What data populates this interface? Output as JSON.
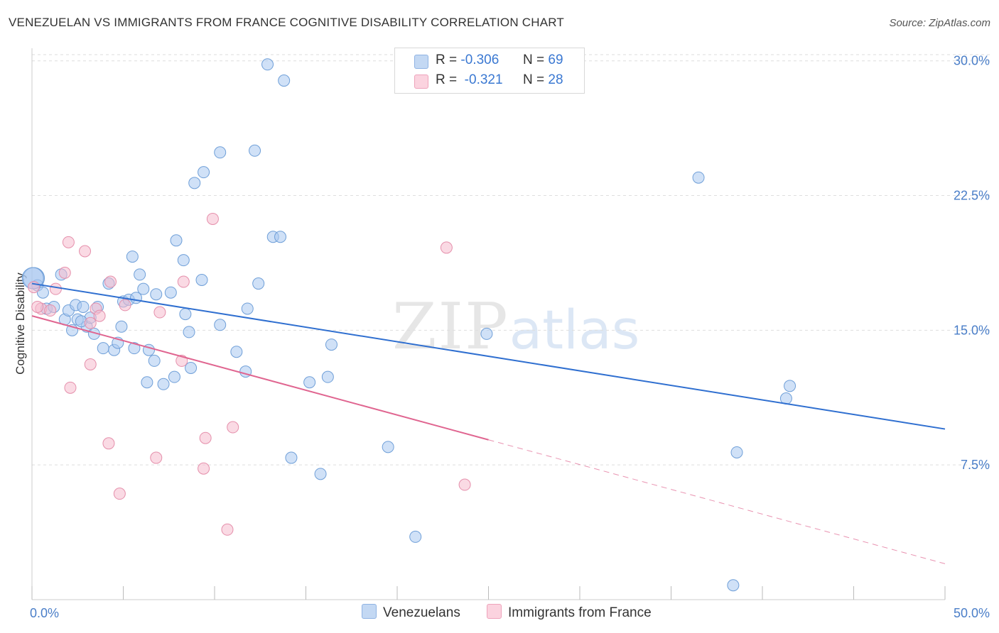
{
  "title": "VENEZUELAN VS IMMIGRANTS FROM FRANCE COGNITIVE DISABILITY CORRELATION CHART",
  "source": "Source: ZipAtlas.com",
  "watermark": {
    "zip": "ZIP",
    "atlas": "atlas"
  },
  "legend": {
    "series1": {
      "r_label": "R =",
      "r_value": "-0.306",
      "n_label": "N =",
      "n_value": "69",
      "color": "#a9c8f0"
    },
    "series2": {
      "r_label": "R =",
      "r_value": "-0.321",
      "n_label": "N =",
      "n_value": "28",
      "color": "#f6bccd"
    }
  },
  "bottom_legend": {
    "series1": "Venezuelans",
    "series2": "Immigrants from France"
  },
  "chart_data": {
    "type": "scatter",
    "ylabel": "Cognitive Disability",
    "xlim": [
      0,
      50
    ],
    "ylim": [
      0,
      30.7
    ],
    "y_ticks": [
      {
        "v": 7.5,
        "label": "7.5%"
      },
      {
        "v": 15,
        "label": "15.0%"
      },
      {
        "v": 22.5,
        "label": "22.5%"
      },
      {
        "v": 30,
        "label": "30.0%"
      }
    ],
    "x_tick_labels": [
      {
        "v": 0,
        "label": "0.0%"
      },
      {
        "v": 50,
        "label": "50.0%"
      }
    ],
    "x_minor_ticks": [
      0,
      5,
      10,
      15,
      20,
      25,
      30,
      35,
      40,
      45,
      50
    ],
    "grid": true,
    "series": [
      {
        "name": "Venezuelans",
        "color": "#a9c8f0",
        "stroke": "#6f9fd8",
        "trend": {
          "x": [
            0,
            50
          ],
          "y": [
            17.6,
            9.5
          ],
          "color": "#2f6fd0"
        },
        "points": [
          [
            0.1,
            17.9
          ],
          [
            0.3,
            17.5
          ],
          [
            0.6,
            17.1
          ],
          [
            0.8,
            16.2
          ],
          [
            1.2,
            16.3
          ],
          [
            1.6,
            18.1
          ],
          [
            1.8,
            15.6
          ],
          [
            2.0,
            16.1
          ],
          [
            2.2,
            15.0
          ],
          [
            2.4,
            16.4
          ],
          [
            2.5,
            15.6
          ],
          [
            2.8,
            16.3
          ],
          [
            3.0,
            15.2
          ],
          [
            3.2,
            15.7
          ],
          [
            3.4,
            14.8
          ],
          [
            3.6,
            16.3
          ],
          [
            3.9,
            14.0
          ],
          [
            4.2,
            17.6
          ],
          [
            4.5,
            13.9
          ],
          [
            4.7,
            14.3
          ],
          [
            4.9,
            15.2
          ],
          [
            5.0,
            16.6
          ],
          [
            5.3,
            16.7
          ],
          [
            5.5,
            19.1
          ],
          [
            5.7,
            16.8
          ],
          [
            5.9,
            18.1
          ],
          [
            6.1,
            17.3
          ],
          [
            6.3,
            12.1
          ],
          [
            6.4,
            13.9
          ],
          [
            6.7,
            13.3
          ],
          [
            6.8,
            17.0
          ],
          [
            7.2,
            12.0
          ],
          [
            7.6,
            17.1
          ],
          [
            7.8,
            12.4
          ],
          [
            7.9,
            20.0
          ],
          [
            8.3,
            18.9
          ],
          [
            8.4,
            15.9
          ],
          [
            8.6,
            14.9
          ],
          [
            8.7,
            12.9
          ],
          [
            8.9,
            23.2
          ],
          [
            9.3,
            17.8
          ],
          [
            9.4,
            23.8
          ],
          [
            10.3,
            24.9
          ],
          [
            10.3,
            15.3
          ],
          [
            11.2,
            13.8
          ],
          [
            11.7,
            12.7
          ],
          [
            11.8,
            16.2
          ],
          [
            12.2,
            25.0
          ],
          [
            12.4,
            17.6
          ],
          [
            12.9,
            29.8
          ],
          [
            13.2,
            20.2
          ],
          [
            13.6,
            20.2
          ],
          [
            13.8,
            28.9
          ],
          [
            14.2,
            7.9
          ],
          [
            15.2,
            12.1
          ],
          [
            15.8,
            7.0
          ],
          [
            16.2,
            12.4
          ],
          [
            16.4,
            14.2
          ],
          [
            19.5,
            8.5
          ],
          [
            21.0,
            3.5
          ],
          [
            24.9,
            14.8
          ],
          [
            36.5,
            23.5
          ],
          [
            38.4,
            0.8
          ],
          [
            38.6,
            8.2
          ],
          [
            41.3,
            11.2
          ],
          [
            41.5,
            11.9
          ],
          [
            0.05,
            17.9
          ],
          [
            2.7,
            15.5
          ],
          [
            5.6,
            14.0
          ]
        ]
      },
      {
        "name": "Immigrants from France",
        "color": "#f6bccd",
        "stroke": "#e58fab",
        "trend": {
          "x": [
            0,
            25
          ],
          "y": [
            15.8,
            8.9
          ],
          "color": "#e06590"
        },
        "trend_ext": {
          "x": [
            25,
            50
          ],
          "y": [
            8.9,
            2.0
          ]
        },
        "points": [
          [
            0.1,
            17.4
          ],
          [
            0.5,
            16.2
          ],
          [
            1.0,
            16.1
          ],
          [
            1.3,
            17.3
          ],
          [
            1.8,
            18.2
          ],
          [
            2.0,
            19.9
          ],
          [
            2.1,
            11.8
          ],
          [
            2.9,
            19.4
          ],
          [
            3.2,
            15.4
          ],
          [
            3.2,
            13.1
          ],
          [
            3.5,
            16.2
          ],
          [
            3.7,
            15.8
          ],
          [
            4.2,
            8.7
          ],
          [
            4.3,
            17.7
          ],
          [
            4.8,
            5.9
          ],
          [
            5.1,
            16.4
          ],
          [
            6.8,
            7.9
          ],
          [
            7.0,
            16.0
          ],
          [
            8.2,
            13.3
          ],
          [
            8.3,
            17.7
          ],
          [
            9.4,
            7.3
          ],
          [
            9.5,
            9.0
          ],
          [
            9.9,
            21.2
          ],
          [
            10.7,
            3.9
          ],
          [
            11.0,
            9.6
          ],
          [
            22.7,
            19.6
          ],
          [
            23.7,
            6.4
          ],
          [
            0.3,
            16.3
          ]
        ]
      }
    ]
  }
}
